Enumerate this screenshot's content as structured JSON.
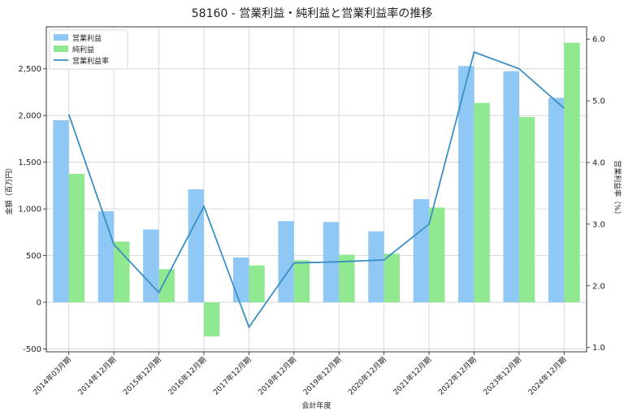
{
  "chart_data": {
    "type": "bar",
    "title": "58160 - 営業利益・純利益と営業利益率の推移",
    "xlabel": "会計年度",
    "ylabel": "金額（百万円）",
    "y2label": "営業利益率（%）",
    "categories": [
      "2014年03月期",
      "2014年12月期",
      "2015年12月期",
      "2016年12月期",
      "2017年12月期",
      "2018年12月期",
      "2019年12月期",
      "2020年12月期",
      "2021年12月期",
      "2022年12月期",
      "2023年12月期",
      "2024年12月期"
    ],
    "series": [
      {
        "name": "営業利益",
        "type": "bar",
        "color": "#90c8f5",
        "values": [
          1950,
          975,
          780,
          1210,
          480,
          870,
          860,
          760,
          1105,
          2530,
          2475,
          2190
        ]
      },
      {
        "name": "純利益",
        "type": "bar",
        "color": "#90e890",
        "values": [
          1375,
          650,
          355,
          -365,
          395,
          450,
          510,
          520,
          1015,
          2135,
          1985,
          2780
        ]
      },
      {
        "name": "営業利益率",
        "type": "line",
        "axis": "right",
        "color": "#3a8fc4",
        "values": [
          4.78,
          2.67,
          1.89,
          3.29,
          1.33,
          2.37,
          2.39,
          2.42,
          3.0,
          5.79,
          5.52,
          4.88
        ]
      }
    ],
    "ylim": [
      -530,
      2950
    ],
    "y2lim": [
      0.93,
      6.2
    ],
    "yticks": [
      -500,
      0,
      500,
      1000,
      1500,
      2000,
      2500
    ],
    "ytick_labels": [
      "-500",
      "0",
      "500",
      "1,000",
      "1,500",
      "2,000",
      "2,500"
    ],
    "y2ticks": [
      1.0,
      2.0,
      3.0,
      4.0,
      5.0,
      6.0
    ],
    "y2tick_labels": [
      "1.0",
      "2.0",
      "3.0",
      "4.0",
      "5.0",
      "6.0"
    ],
    "grid": true,
    "legend_position": "top-left"
  }
}
